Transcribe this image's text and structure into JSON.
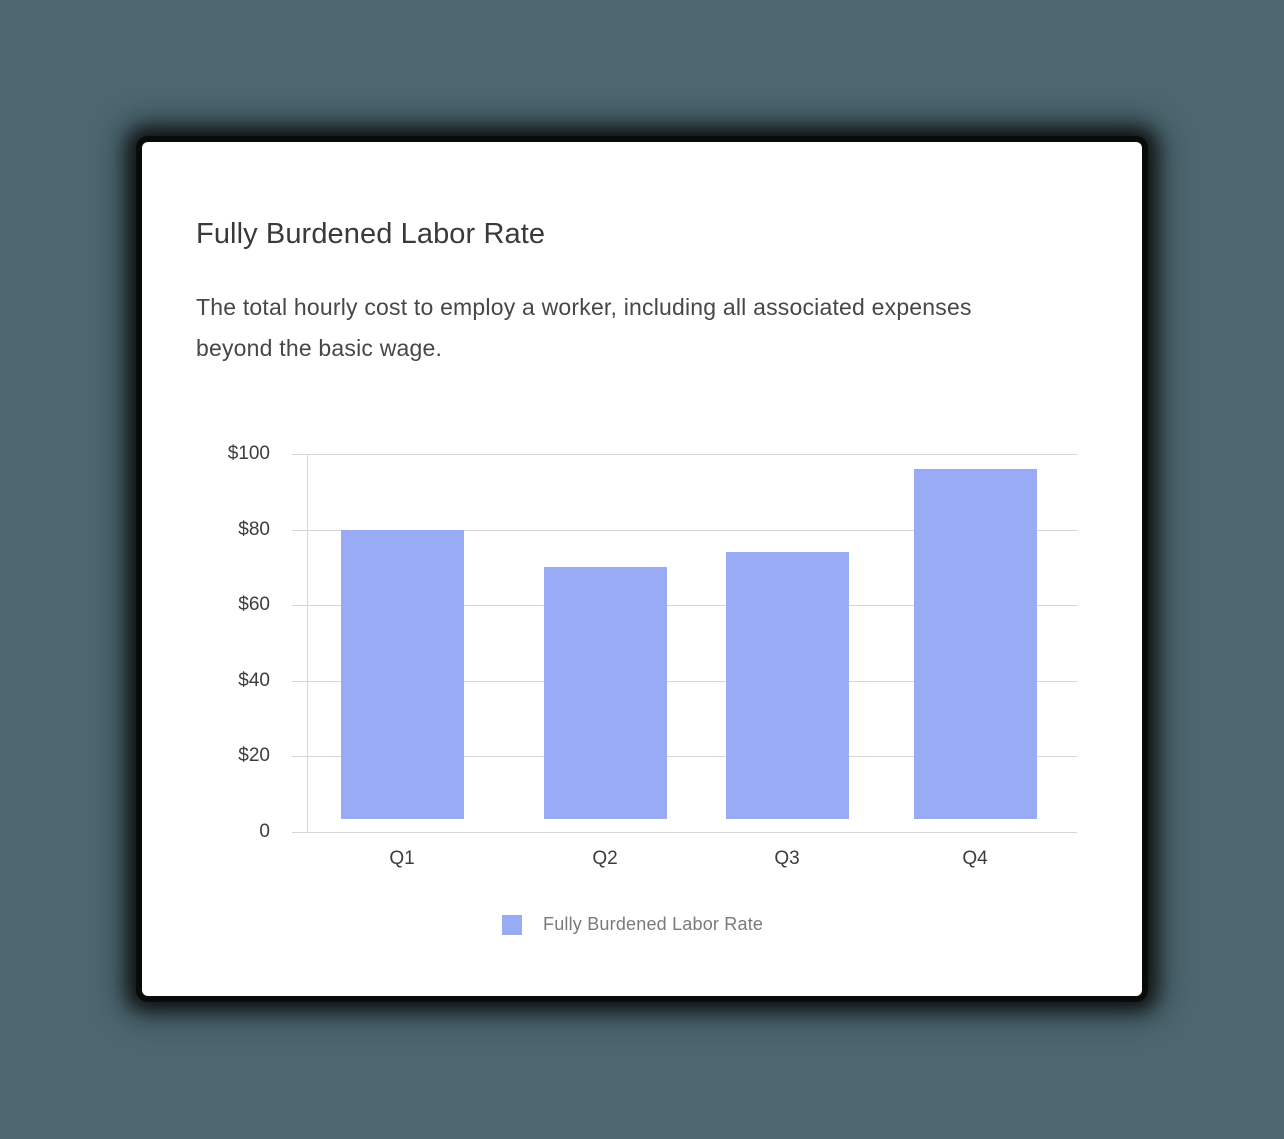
{
  "card": {
    "title": "Fully Burdened Labor Rate",
    "description": "The total hourly cost to employ a worker, including all associated expenses beyond the basic wage."
  },
  "colors": {
    "background": "#4c6770",
    "bar": "#9aabf5",
    "gridline": "#d6d6d6"
  },
  "chart_data": {
    "type": "bar",
    "title": "Fully Burdened Labor Rate",
    "categories": [
      "Q1",
      "Q2",
      "Q3",
      "Q4"
    ],
    "series": [
      {
        "name": "Fully Burdened Labor Rate",
        "values": [
          80,
          70,
          74,
          96
        ],
        "color": "#9aabf5"
      }
    ],
    "values": [
      80,
      70,
      74,
      96
    ],
    "xlabel": "",
    "ylabel": "",
    "ylim": [
      0,
      100
    ],
    "yticks": [
      "0",
      "$20",
      "$40",
      "$60",
      "$80",
      "$100"
    ],
    "grid": true,
    "legend_position": "bottom"
  },
  "axis": {
    "y_labels": [
      "$100",
      "$80",
      "$60",
      "$40",
      "$20",
      "0"
    ],
    "x_labels": [
      "Q1",
      "Q2",
      "Q3",
      "Q4"
    ]
  },
  "legend": {
    "label": "Fully Burdened Labor Rate"
  }
}
